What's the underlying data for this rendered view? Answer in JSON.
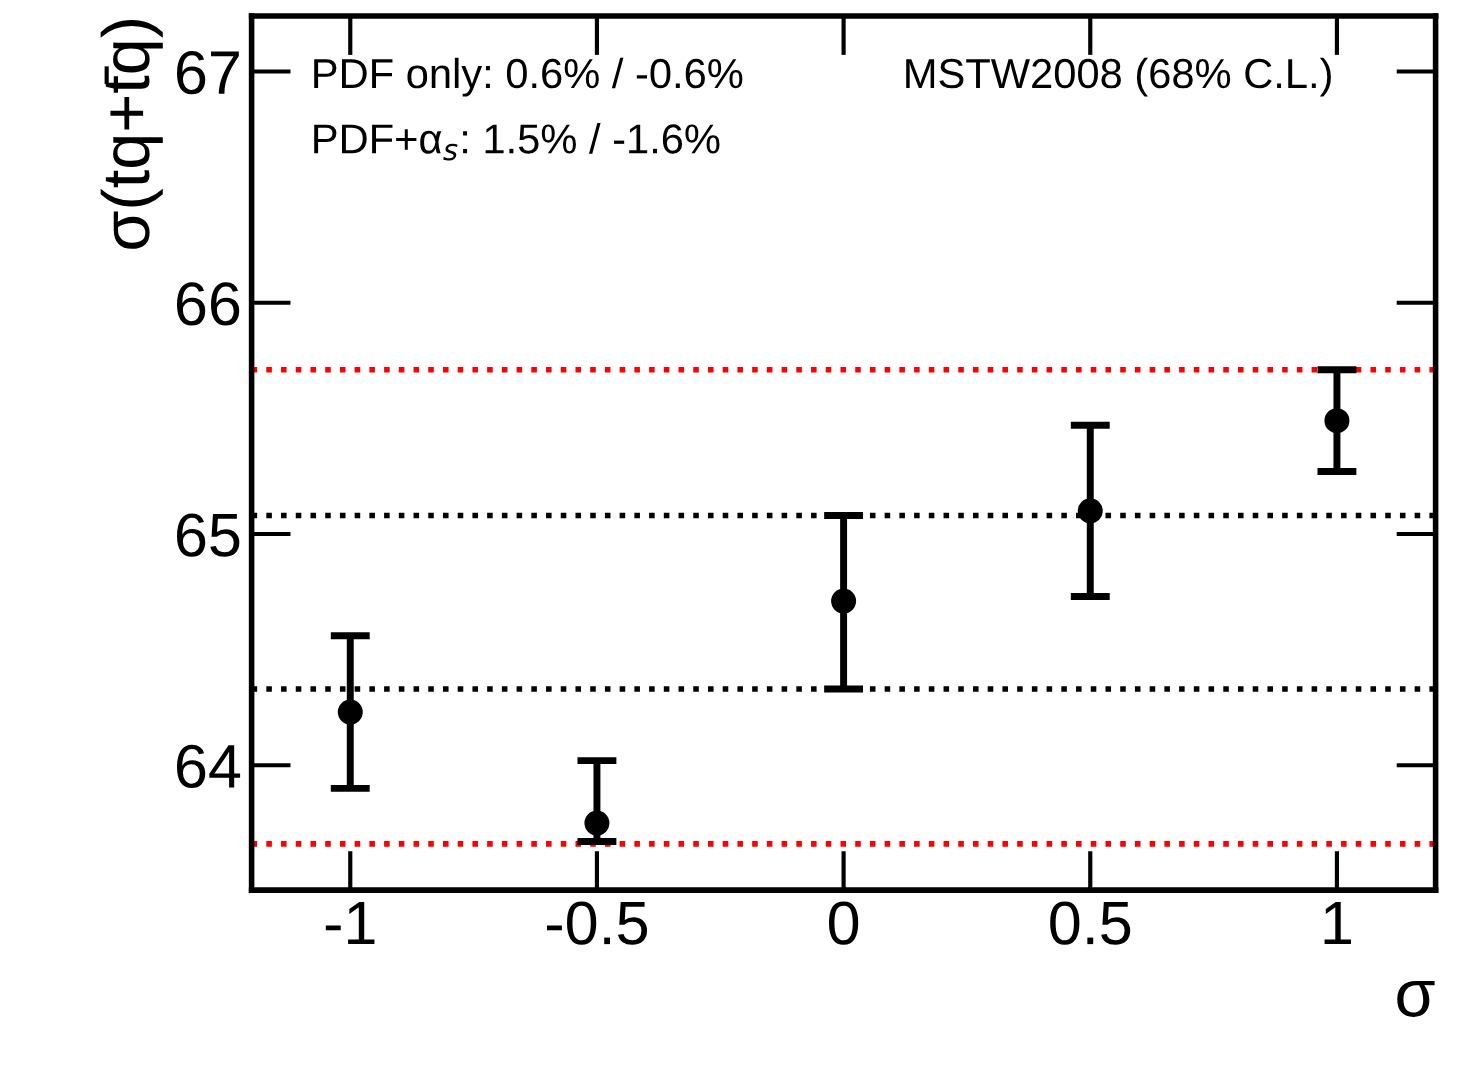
{
  "chart_data": {
    "type": "scatter",
    "ylabel": "σ(tq+t̄q)",
    "xlabel": "σ",
    "annotations": [
      "PDF only: 0.6% / -0.6%",
      "MSTW2008 (68% C.L.)",
      "PDF+α$_{s}$: 1.5% / -1.6%"
    ],
    "x": [
      -1,
      -0.5,
      0,
      0.5,
      1
    ],
    "series": [
      {
        "color": "#000000",
        "values": [
          64.23,
          63.75,
          64.71,
          65.1,
          65.49
        ],
        "errors": [
          [
            63.9,
            64.56
          ],
          [
            63.67,
            64.02
          ],
          [
            64.33,
            65.08
          ],
          [
            64.73,
            65.47
          ],
          [
            65.27,
            65.71
          ]
        ]
      }
    ],
    "marker": "circle",
    "xlim": [
      -1.2,
      1.2
    ],
    "xticks": [
      -1,
      -0.5,
      0,
      0.5,
      1
    ],
    "ylim": [
      63.46,
      67.24
    ],
    "yticks": [
      64,
      65,
      66,
      67
    ],
    "ref_lines": [
      {
        "axis": "y",
        "value": 65.71,
        "color": "#ff0000",
        "line_style": "dotted"
      },
      {
        "axis": "y",
        "value": 63.66,
        "color": "#ff0000",
        "line_style": "dotted"
      },
      {
        "axis": "y",
        "value": 65.08,
        "color": "#000000",
        "line_style": "dotted"
      },
      {
        "axis": "y",
        "value": 64.33,
        "color": "#000000",
        "line_style": "dotted"
      }
    ],
    "grid": false,
    "legend": false
  }
}
